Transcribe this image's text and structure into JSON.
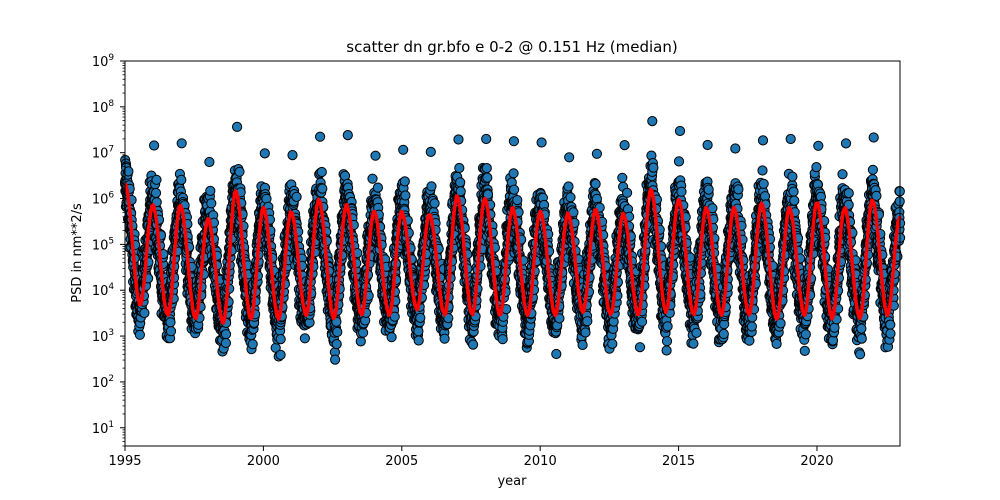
{
  "chart_data": {
    "type": "scatter",
    "title": "scatter dn gr.bfo e 0-2 @ 0.151 Hz (median)",
    "xlabel": "year",
    "ylabel": "PSD in nm**2/s",
    "xlim": [
      1995,
      2023
    ],
    "ylim": [
      4,
      1000000000
    ],
    "yscale": "log",
    "xticks": [
      1995,
      2000,
      2005,
      2010,
      2015,
      2020
    ],
    "xtick_labels": [
      "1995",
      "2000",
      "2005",
      "2010",
      "2015",
      "2020"
    ],
    "yticks": [
      {
        "base": "10",
        "exp": "1",
        "value": 10
      },
      {
        "base": "10",
        "exp": "2",
        "value": 100
      },
      {
        "base": "10",
        "exp": "3",
        "value": 1000
      },
      {
        "base": "10",
        "exp": "4",
        "value": 10000
      },
      {
        "base": "10",
        "exp": "5",
        "value": 100000
      },
      {
        "base": "10",
        "exp": "6",
        "value": 1000000
      },
      {
        "base": "10",
        "exp": "7",
        "value": 10000000
      },
      {
        "base": "10",
        "exp": "8",
        "value": 100000000
      },
      {
        "base": "10",
        "exp": "9",
        "value": 1000000000
      }
    ],
    "grid": false,
    "legend": "none",
    "colors": {
      "points_fill": "#1f77b4",
      "points_edge": "#000000",
      "median_line": "#ff0000"
    },
    "series": [
      {
        "kind": "scatter",
        "description_of_distribution": "daily PSD values with annual cycle",
        "annual_peak_day_of_year": 20,
        "seasonal_range": {
          "winter_upper": 10000000,
          "summer_lower": 700
        }
      },
      {
        "kind": "line",
        "median_peaks": [
          {
            "x": 1996.0,
            "y": 700000
          },
          {
            "x": 1997.0,
            "y": 700000
          },
          {
            "x": 1998.0,
            "y": 350000
          },
          {
            "x": 1999.0,
            "y": 1400000
          },
          {
            "x": 2000.0,
            "y": 600000
          },
          {
            "x": 2001.0,
            "y": 500000
          },
          {
            "x": 2002.0,
            "y": 900000
          },
          {
            "x": 2003.0,
            "y": 700000
          },
          {
            "x": 2004.0,
            "y": 500000
          },
          {
            "x": 2005.0,
            "y": 500000
          },
          {
            "x": 2006.0,
            "y": 450000
          },
          {
            "x": 2007.0,
            "y": 1100000
          },
          {
            "x": 2008.0,
            "y": 1000000
          },
          {
            "x": 2009.0,
            "y": 600000
          },
          {
            "x": 2010.0,
            "y": 500000
          },
          {
            "x": 2011.0,
            "y": 450000
          },
          {
            "x": 2012.0,
            "y": 550000
          },
          {
            "x": 2013.0,
            "y": 450000
          },
          {
            "x": 2014.0,
            "y": 1500000
          },
          {
            "x": 2015.0,
            "y": 900000
          },
          {
            "x": 2016.0,
            "y": 600000
          },
          {
            "x": 2017.0,
            "y": 600000
          },
          {
            "x": 2018.0,
            "y": 750000
          },
          {
            "x": 2019.0,
            "y": 600000
          },
          {
            "x": 2020.0,
            "y": 800000
          },
          {
            "x": 2021.0,
            "y": 600000
          },
          {
            "x": 2022.0,
            "y": 900000
          }
        ],
        "median_troughs": [
          {
            "x": 1995.55,
            "y": 5000
          },
          {
            "x": 1996.55,
            "y": 3000
          },
          {
            "x": 1997.55,
            "y": 2500
          },
          {
            "x": 1998.55,
            "y": 2000
          },
          {
            "x": 1999.55,
            "y": 2500
          },
          {
            "x": 2000.55,
            "y": 2500
          },
          {
            "x": 2001.55,
            "y": 3000
          },
          {
            "x": 2002.55,
            "y": 2500
          },
          {
            "x": 2003.55,
            "y": 3000
          },
          {
            "x": 2004.55,
            "y": 3000
          },
          {
            "x": 2005.55,
            "y": 4000
          },
          {
            "x": 2006.55,
            "y": 3000
          },
          {
            "x": 2007.55,
            "y": 3000
          },
          {
            "x": 2008.55,
            "y": 3000
          },
          {
            "x": 2009.55,
            "y": 3000
          },
          {
            "x": 2010.55,
            "y": 3000
          },
          {
            "x": 2011.55,
            "y": 3500
          },
          {
            "x": 2012.55,
            "y": 3000
          },
          {
            "x": 2013.55,
            "y": 3000
          },
          {
            "x": 2014.55,
            "y": 3500
          },
          {
            "x": 2015.55,
            "y": 3000
          },
          {
            "x": 2016.55,
            "y": 3000
          },
          {
            "x": 2017.55,
            "y": 3000
          },
          {
            "x": 2018.55,
            "y": 2500
          },
          {
            "x": 2019.55,
            "y": 3000
          },
          {
            "x": 2020.55,
            "y": 2500
          },
          {
            "x": 2021.55,
            "y": 2500
          },
          {
            "x": 2022.55,
            "y": 3000
          }
        ],
        "end_point": {
          "x": 2023.0,
          "y": 400000
        }
      }
    ]
  }
}
